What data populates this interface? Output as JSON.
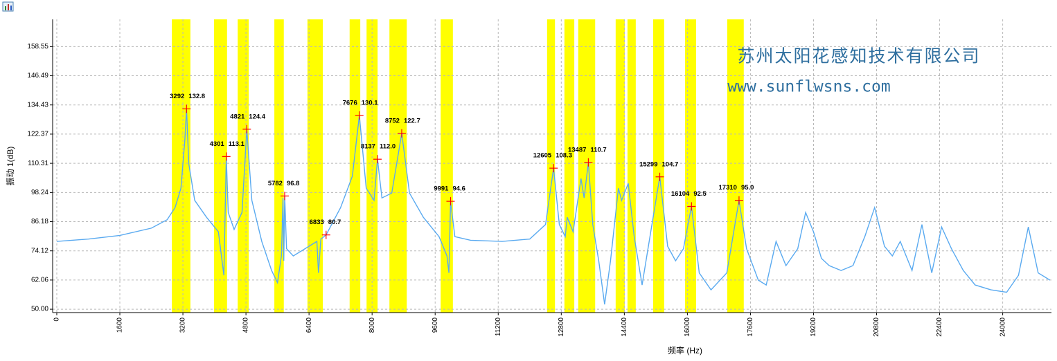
{
  "chart_data": {
    "type": "line",
    "x_label": "频率 (Hz)",
    "y_label": "振动 1(dB)",
    "watermark": [
      "苏州太阳花感知技术有限公司",
      "www.sunflwsns.com"
    ],
    "color": "#5aaaf0",
    "xlim": [
      -105,
      25237
    ],
    "ylim": [
      48.6,
      169.8
    ],
    "xticks": [
      0,
      1600,
      3200,
      4800,
      6400,
      8000,
      9600,
      11200,
      12800,
      14400,
      16000,
      17600,
      19200,
      20800,
      22400,
      24000
    ],
    "yticks": [
      {
        "value": 50,
        "label": "50.00"
      },
      62.06,
      74.12,
      86.18,
      98.24,
      110.31,
      122.37,
      134.43,
      146.49,
      158.55
    ],
    "grid": true,
    "band_color": "#ffff00",
    "bands": [
      [
        2920,
        3390
      ],
      [
        3990,
        4320
      ],
      [
        4590,
        4870
      ],
      [
        5520,
        5760
      ],
      [
        6360,
        6750
      ],
      [
        7430,
        7700
      ],
      [
        7860,
        8140
      ],
      [
        8440,
        8880
      ],
      [
        9740,
        10050
      ],
      [
        12440,
        12640
      ],
      [
        12880,
        13130
      ],
      [
        13230,
        13660
      ],
      [
        14180,
        14410
      ],
      [
        14480,
        14690
      ],
      [
        15130,
        15410
      ],
      [
        15940,
        16220
      ],
      [
        17010,
        17430
      ]
    ],
    "x": [
      0,
      800,
      1600,
      2400,
      2800,
      3000,
      3150,
      3250,
      3292,
      3350,
      3500,
      3800,
      4100,
      4240,
      4301,
      4350,
      4500,
      4700,
      4821,
      4950,
      5200,
      5450,
      5600,
      5700,
      5740,
      5760,
      5782,
      5830,
      6000,
      6400,
      6600,
      6640,
      6700,
      6833,
      7200,
      7500,
      7676,
      7850,
      8050,
      8137,
      8250,
      8500,
      8752,
      8950,
      9300,
      9700,
      9900,
      9950,
      9991,
      10100,
      10500,
      11300,
      12000,
      12400,
      12605,
      12750,
      12900,
      12950,
      13100,
      13300,
      13380,
      13487,
      13600,
      13750,
      13900,
      14050,
      14250,
      14330,
      14500,
      14650,
      14850,
      15000,
      15299,
      15500,
      15700,
      15900,
      16104,
      16300,
      16600,
      17000,
      17310,
      17500,
      17800,
      18000,
      18250,
      18500,
      18800,
      19000,
      19200,
      19400,
      19600,
      19900,
      20200,
      20500,
      20750,
      21000,
      21200,
      21400,
      21700,
      21950,
      22200,
      22450,
      22700,
      23000,
      23300,
      23700,
      24100,
      24400,
      24650,
      24900,
      25200
    ],
    "values": [
      78,
      79,
      80.5,
      83.5,
      87,
      92,
      100,
      120,
      132.8,
      110,
      95,
      88,
      82,
      64,
      113.1,
      90,
      83,
      90,
      124.4,
      95,
      78,
      66,
      61,
      72,
      96,
      70,
      96.8,
      75,
      72,
      76,
      78,
      65,
      79,
      80.7,
      92,
      105,
      130.1,
      100,
      95,
      112.0,
      96,
      98,
      122.7,
      98,
      88,
      80,
      72,
      65,
      94.6,
      80,
      78.5,
      78,
      79,
      85,
      108.3,
      85,
      80,
      88,
      82,
      104,
      96,
      110.7,
      85,
      70,
      52,
      70,
      100,
      95,
      102,
      80,
      60,
      75,
      104.7,
      76,
      70,
      75,
      92.5,
      65,
      58,
      65,
      95.0,
      75,
      62,
      60,
      78,
      68,
      75,
      90,
      82,
      71,
      68,
      66,
      68,
      80,
      92,
      76,
      72,
      78,
      66,
      85,
      65,
      84,
      75,
      66,
      60,
      58,
      57,
      64,
      84,
      65,
      62
    ],
    "peaks": {
      "color": "#ff0000",
      "x": [
        3292,
        4301,
        4821,
        5782,
        6833,
        7676,
        8137,
        8752,
        9991,
        12605,
        13487,
        15299,
        16104,
        17310
      ],
      "values": [
        132.8,
        113.1,
        124.4,
        96.8,
        80.7,
        130.1,
        112.0,
        122.7,
        94.6,
        108.3,
        110.7,
        104.7,
        92.5,
        95.0
      ],
      "value_labels": [
        "132.8",
        "113.1",
        "124.4",
        "96.8",
        "80.7",
        "130.1",
        "112.0",
        "122.7",
        "94.6",
        "108.3",
        "110.7",
        "104.7",
        "92.5",
        "95.0"
      ]
    }
  }
}
